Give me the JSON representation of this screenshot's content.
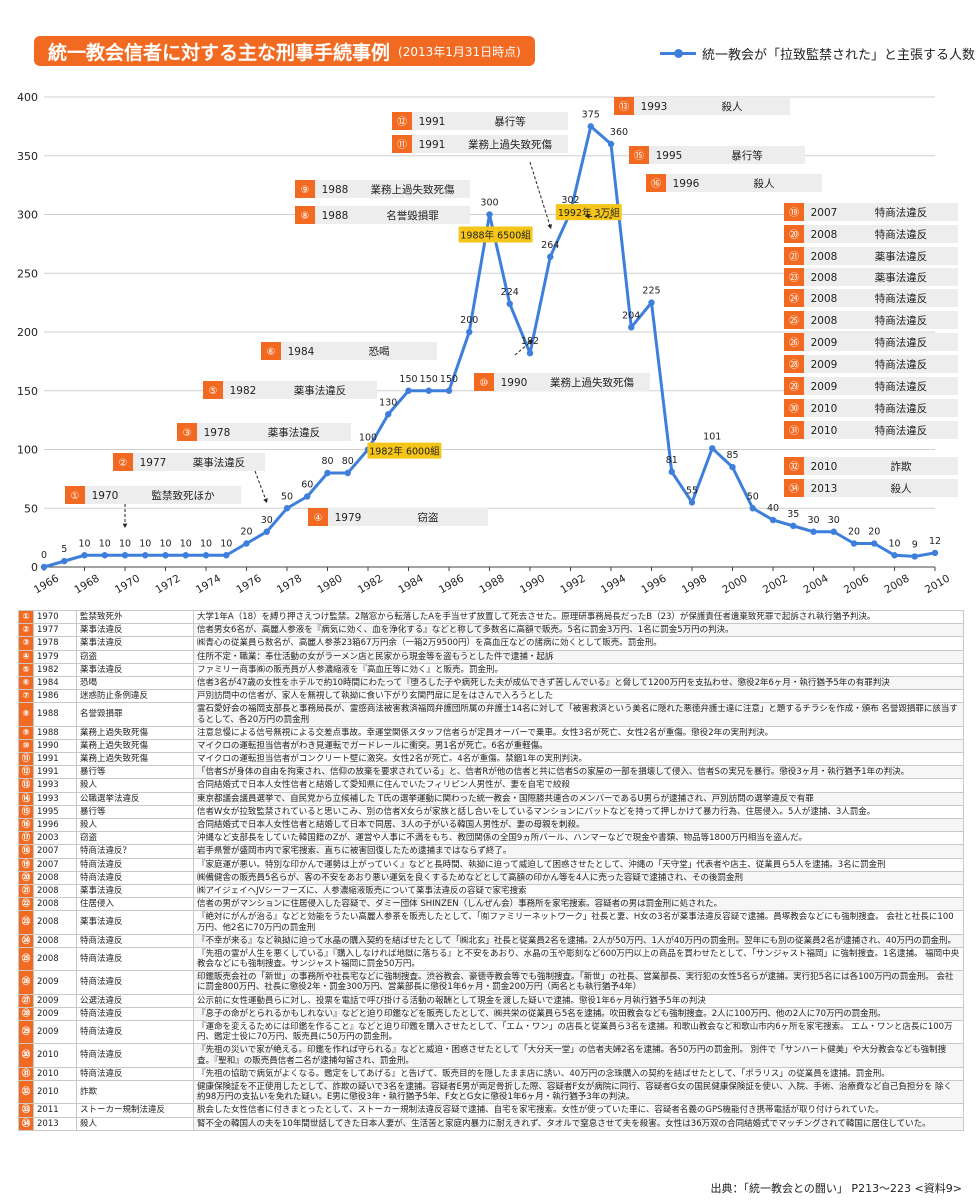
{
  "title": "統一教会信者に対する主な刑事手続事例",
  "subtitle": "(2013年1月31日時点)",
  "legend_label": "統一教会が「拉致監禁された」と主張する人数",
  "colors": {
    "accent": "#f26a21",
    "line": "#3e7fdc",
    "label_bg": "#ededed",
    "callout": "#f5c518"
  },
  "chart_data": {
    "type": "line",
    "x": [
      1966,
      1967,
      1968,
      1969,
      1970,
      1971,
      1972,
      1973,
      1974,
      1975,
      1976,
      1977,
      1978,
      1979,
      1980,
      1981,
      1982,
      1983,
      1984,
      1985,
      1986,
      1987,
      1988,
      1989,
      1990,
      1991,
      1992,
      1993,
      1994,
      1995,
      1996,
      1997,
      1998,
      1999,
      2000,
      2001,
      2002,
      2003,
      2004,
      2005,
      2006,
      2007,
      2008,
      2009,
      2010
    ],
    "values": [
      0,
      5,
      10,
      10,
      10,
      10,
      10,
      10,
      10,
      10,
      20,
      30,
      50,
      60,
      80,
      80,
      100,
      130,
      150,
      150,
      150,
      200,
      300,
      224,
      182,
      264,
      302,
      375,
      360,
      204,
      225,
      81,
      55,
      101,
      85,
      50,
      40,
      35,
      30,
      30,
      20,
      20,
      10,
      9,
      12
    ],
    "x_ticks": [
      "1966",
      "1968",
      "1970",
      "1972",
      "1974",
      "1976",
      "1978",
      "1980",
      "1982",
      "1984",
      "1986",
      "1988",
      "1990",
      "1992",
      "1994",
      "1996",
      "1998",
      "2000",
      "2002",
      "2004",
      "2006",
      "2008",
      "2010"
    ],
    "y_ticks": [
      "0",
      "50",
      "100",
      "150",
      "200",
      "250",
      "300",
      "350",
      "400"
    ],
    "ylim": [
      0,
      400
    ],
    "xlim": [
      1966,
      2010
    ],
    "grid": true,
    "callouts": [
      "1982年 6000組",
      "1988年 6500組",
      "1992年 3万組"
    ],
    "case_labels": [
      {
        "no": "①",
        "year": "1970",
        "crime": "監禁致死ほか"
      },
      {
        "no": "②",
        "year": "1977",
        "crime": "薬事法違反"
      },
      {
        "no": "③",
        "year": "1978",
        "crime": "薬事法違反"
      },
      {
        "no": "④",
        "year": "1979",
        "crime": "窃盗"
      },
      {
        "no": "⑤",
        "year": "1982",
        "crime": "薬事法違反"
      },
      {
        "no": "⑥",
        "year": "1984",
        "crime": "恐喝"
      },
      {
        "no": "⑧",
        "year": "1988",
        "crime": "名誉毀損罪"
      },
      {
        "no": "⑨",
        "year": "1988",
        "crime": "業務上過失致死傷"
      },
      {
        "no": "⑩",
        "year": "1990",
        "crime": "業務上過失致死傷"
      },
      {
        "no": "⑪",
        "year": "1991",
        "crime": "業務上過失致死傷"
      },
      {
        "no": "⑫",
        "year": "1991",
        "crime": "暴行等"
      },
      {
        "no": "⑬",
        "year": "1993",
        "crime": "殺人"
      },
      {
        "no": "⑮",
        "year": "1995",
        "crime": "暴行等"
      },
      {
        "no": "⑯",
        "year": "1996",
        "crime": "殺人"
      },
      {
        "no": "⑲",
        "year": "2007",
        "crime": "特商法違反"
      },
      {
        "no": "⑳",
        "year": "2008",
        "crime": "特商法違反"
      },
      {
        "no": "㉑",
        "year": "2008",
        "crime": "薬事法違反"
      },
      {
        "no": "㉓",
        "year": "2008",
        "crime": "薬事法違反"
      },
      {
        "no": "㉔",
        "year": "2008",
        "crime": "特商法違反"
      },
      {
        "no": "㉕",
        "year": "2008",
        "crime": "特商法違反"
      },
      {
        "no": "㉖",
        "year": "2009",
        "crime": "特商法違反"
      },
      {
        "no": "㉘",
        "year": "2009",
        "crime": "特商法違反"
      },
      {
        "no": "㉙",
        "year": "2009",
        "crime": "特商法違反"
      },
      {
        "no": "㉚",
        "year": "2010",
        "crime": "特商法違反"
      },
      {
        "no": "㉛",
        "year": "2010",
        "crime": "特商法違反"
      },
      {
        "no": "㉜",
        "year": "2010",
        "crime": "詐欺"
      },
      {
        "no": "㉞",
        "year": "2013",
        "crime": "殺人"
      }
    ]
  },
  "table_rows": [
    {
      "no": "①",
      "year": "1970",
      "crime": "監禁致死外",
      "desc": "大学1年A（18）を縛り押さえつけ監禁。2階窓から転落したAを手当せず放置して死去させた。原理研事務局長だったB（23）が保護責任者遺棄致死罪で起訴され執行猶予判決。"
    },
    {
      "no": "②",
      "year": "1977",
      "crime": "薬事法違反",
      "desc": "信者男女6名が、高麗人参液を『病気に効く、血を浄化する』などと称して多数名に高額で販売。5名に罰金3万円、1名に罰金5万円の判決。"
    },
    {
      "no": "③",
      "year": "1978",
      "crime": "薬事法違反",
      "desc": "㈱青心の従業員ら数名が、高麗人参茶23箱67万円余（一箱2万9500円）を高血圧などの諸病に効くとして販売。罰金刑。"
    },
    {
      "no": "④",
      "year": "1979",
      "crime": "窃盗",
      "desc": "住所不定・職業：奉仕活動の女がラーメン店と民家から現金等を盗もうとした件で逮捕・起訴"
    },
    {
      "no": "⑤",
      "year": "1982",
      "crime": "薬事法違反",
      "desc": "ファミリー商事㈱の販売員が人参濃縮液を『高血圧等に効く』と販売。罰金刑。"
    },
    {
      "no": "⑥",
      "year": "1984",
      "crime": "恐喝",
      "desc": "信者3名が47歳の女性をホテルで約10時間にわたって『堕ろした子や病死した夫が成仏できず苦しんでいる』と脅して1200万円を支払わせ、懲役2年6ヶ月・執行猶予5年の有罪判決"
    },
    {
      "no": "⑦",
      "year": "1986",
      "crime": "迷惑防止条例違反",
      "desc": "戸別訪問中の信者が、家人を無視して執拗に食い下がり玄関門扉に足をはさんで入ろうとした"
    },
    {
      "no": "⑧",
      "year": "1988",
      "crime": "名誉毀損罪",
      "desc": "霊石愛好会の福岡支部長と事務局長が、霊感商法被害救済福岡弁護団所属の弁護士14名に対して「被害救済という美名に隠れた悪徳弁護士達に注意」と題するチラシを作成・頒布 名誉毀損罪に該当するとして、各20万円の罰金刑"
    },
    {
      "no": "⑨",
      "year": "1988",
      "crime": "業務上過失致死傷",
      "desc": "注意怠慢による信号無視による交差点事故。幸運堂関係スタッフ信者らが定員オーバーで乗車。女性3名が死亡、女性2名が重傷。懲役2年の実刑判決。"
    },
    {
      "no": "⑩",
      "year": "1990",
      "crime": "業務上過失致死傷",
      "desc": "マイクロの運転担当信者がわき見運転でガードレールに衝突。男1名が死亡。6名が重軽傷。"
    },
    {
      "no": "⑪",
      "year": "1991",
      "crime": "業務上過失致死傷",
      "desc": "マイクロの運転担当信者がコンクリート壁に激突。女性2名が死亡。4名が重傷。禁錮1年の実刑判決。"
    },
    {
      "no": "⑫",
      "year": "1991",
      "crime": "暴行等",
      "desc": "「信者Sが身体の自由を拘束され、信仰の放棄を要求されている」と、信者Rが他の信者と共に信者Sの家屋の一部を損壊して侵入、信者Sの実兄を暴行。懲役3ヶ月・執行猶予1年の判決。"
    },
    {
      "no": "⑬",
      "year": "1993",
      "crime": "殺人",
      "desc": "合同結婚式で日本人女性信者と結婚して愛知県に住んでいたフィリピン人男性が、妻を自宅で絞殺"
    },
    {
      "no": "⑭",
      "year": "1993",
      "crime": "公職選挙法違反",
      "desc": "東京都議会議員選挙で、自民党から立候補した T氏の選挙運動に関わった統一教会・国際勝共連合のメンバーであるU男らが逮捕され、戸別訪問の選挙違反で有罪"
    },
    {
      "no": "⑮",
      "year": "1995",
      "crime": "暴行等",
      "desc": "信者W女が拉致監禁されていると思いこみ、別の信者X女らが家族と話し合いをしているマンションにバットなどを持って押しかけて暴力行為、住居侵入。5人が逮捕、3人罰金。"
    },
    {
      "no": "⑯",
      "year": "1996",
      "crime": "殺人",
      "desc": "合同結婚式で日本人女性信者と結婚して日本で同居、3人の子がいる韓国人男性が、妻の母親を刺殺。"
    },
    {
      "no": "⑰",
      "year": "2003",
      "crime": "窃盗",
      "desc": "沖縄など支部長をしていた韓国籍のZが、運営や人事に不満をもち、教団関係の全国9ヵ所バール、ハンマーなどで現金や書類、物品等1800万円相当を盗んだ。"
    },
    {
      "no": "⑱",
      "year": "2007",
      "crime": "特商法違反？",
      "desc": "岩手県警が盛岡市内で家宅捜索、直ちに被害回復したため逮捕まではならず終了。"
    },
    {
      "no": "⑲",
      "year": "2007",
      "crime": "特商法違反",
      "desc": "『家庭運が悪い。特別な印かんで運勢は上がっていく』などと長時間、執拗に迫って威迫して困惑させたとして、沖縄の「天守堂」代表者や店主、従業員ら5人を逮捕。3名に罰金刑"
    },
    {
      "no": "⑳",
      "year": "2008",
      "crime": "特商法違反",
      "desc": "㈱備健舎の販売員5名らが、客の不安をあおり悪い運気を良くするためなどとして高額の印かん等を4人に売った容疑で逮捕され、その後罰金刑"
    },
    {
      "no": "㉑",
      "year": "2008",
      "crime": "薬事法違反",
      "desc": "㈱アイジェイヘJVシーフーズに、人参濃縮液販売について薬事法違反の容疑で家宅捜索"
    },
    {
      "no": "㉒",
      "year": "2008",
      "crime": "住居侵入",
      "desc": "信者の男がマンションに住居侵入した容疑で、ダミー団体 SHINZEN（しんぜん会）事務所を家宅捜索。容疑者の男は罰金刑に処された。"
    },
    {
      "no": "㉓",
      "year": "2008",
      "crime": "薬事法違反",
      "desc": "『絶対にがんが治る』などと効能をうたい高麗人参茶を販売したとして、「㈲ファミリーネットワーク」社長と妻、H女の3名が薬事法違反容疑で逮捕。員塚教会などにも強制捜査。 会社と社長に100万円、他2名に70万円の罰金刑"
    },
    {
      "no": "㉔",
      "year": "2008",
      "crime": "特商法違反",
      "desc": "『不幸が来る』など執拗に迫って水晶の購入契約を結ばせたとして「㈱北玄」社長と従業員2名を逮捕。2人が50万円、1人が40万円の罰金刑。翌年にも別の従業員2名が逮捕され、40万円の罰金刑。"
    },
    {
      "no": "㉕",
      "year": "2008",
      "crime": "特商法違反",
      "desc": "『先祖の霊が人生を悪くしている』『購入しなければ地獄に落ちる』と不安をあおり、水晶の玉や彫刻など600万円以上の商品を買わせたとして、「サンジャスト福岡」に強制捜査。1名逮捕。 福岡中央教会などにも強制捜査。サンジャスト福岡に罰金50万円。"
    },
    {
      "no": "㉖",
      "year": "2009",
      "crime": "特商法違反",
      "desc": "印鑑販売会社の「新世」の事務所や社長宅などに強制捜査。渋谷教会、豪徳寺教会等でも強制捜査。「新世」の社長、営業部長、実行犯の女性5名らが逮捕。実行犯5名には各100万円の罰金刑。 会社に罰金800万円、社長に懲役2年・罰金300万円、営業部長に懲役1年6ヶ月・罰金200万円（両名とも執行猶予4年）"
    },
    {
      "no": "㉗",
      "year": "2009",
      "crime": "公選法違反",
      "desc": "公示前に女性運動員らに対し、投票を電話で呼び掛ける活動の報酬として現金を渡した疑いで逮捕。懲役1年6ヶ月執行猶予5年の判決"
    },
    {
      "no": "㉘",
      "year": "2009",
      "crime": "特商法違反",
      "desc": "『息子の命がとられるかもしれない』などと迫り印鑑などを販売したとして、㈱共栄の従業員ら5名を逮捕。吹田教会なども強制捜査。2人に100万円、他の2人に70万円の罰金刑。"
    },
    {
      "no": "㉙",
      "year": "2009",
      "crime": "特商法違反",
      "desc": "『運命を変えるためには印鑑を作ること』などと迫り印鑑を購入させたとして、「エム・ワン」の店長と従業員ら3名を逮捕。和歌山教会など和歌山市内6ヶ所を家宅捜索。 エム・ワンと店長に100万円、鑑定士役に70万円、販売員に50万円の罰金刑。"
    },
    {
      "no": "㉚",
      "year": "2010",
      "crime": "特商法違反",
      "desc": "『先祖の災いで家が絶える。印鑑を作れば守られる』などと威迫・困惑させたとして「大分天一堂」の信者夫婦2名を逮捕。各50万円の罰金刑。 別件で「サンハート健美」や大分教会なども強制捜査。『聖和』の販売員信者二名が逮捕勾留され、罰金刑。"
    },
    {
      "no": "㉛",
      "year": "2010",
      "crime": "特商法違反",
      "desc": "『先祖の協助で病気がよくなる。鑑定をしてあげる』と告げて、販売目的を隠したまま店に誘い、40万円の念珠購入の契約を結ばせたとして、「ポラリス」の従業員を逮捕。罰金刑。"
    },
    {
      "no": "㉜",
      "year": "2010",
      "crime": "詐欺",
      "desc": "健康保険証を不正使用したとして、詐欺の疑いで3名を逮捕。容疑者E男が両足骨折した際、容疑者F女が病院に同行、容疑者G女の国民健康保険証を使い、入院、手術、治療費など自己負担分を 除く約98万円の支払いを免れた疑い。E男に懲役3年・執行猶予5年、F女とG女に懲役1年6ヶ月・執行猶予3年の判決。"
    },
    {
      "no": "㉝",
      "year": "2011",
      "crime": "ストーカー規制法違反",
      "desc": "脱会した女性信者に付きまとったとして、ストーカー規制法違反容疑で逮捕、自宅を家宅捜索。女性が使っていた車に、容疑者名義のGPS機能付き携帯電話が取り付けられていた。"
    },
    {
      "no": "㉞",
      "year": "2013",
      "crime": "殺人",
      "desc": "腎不全の韓国人の夫を10年間世話してきた日本人妻が、生活苦と家庭内暴力に耐えきれず、タオルで窒息させて夫を殺害。女性は36万双の合同結婚式でマッチングされて韓国に居住していた。"
    }
  ],
  "source": "出典：「統一教会との闘い」 P213〜223 <資料9>"
}
